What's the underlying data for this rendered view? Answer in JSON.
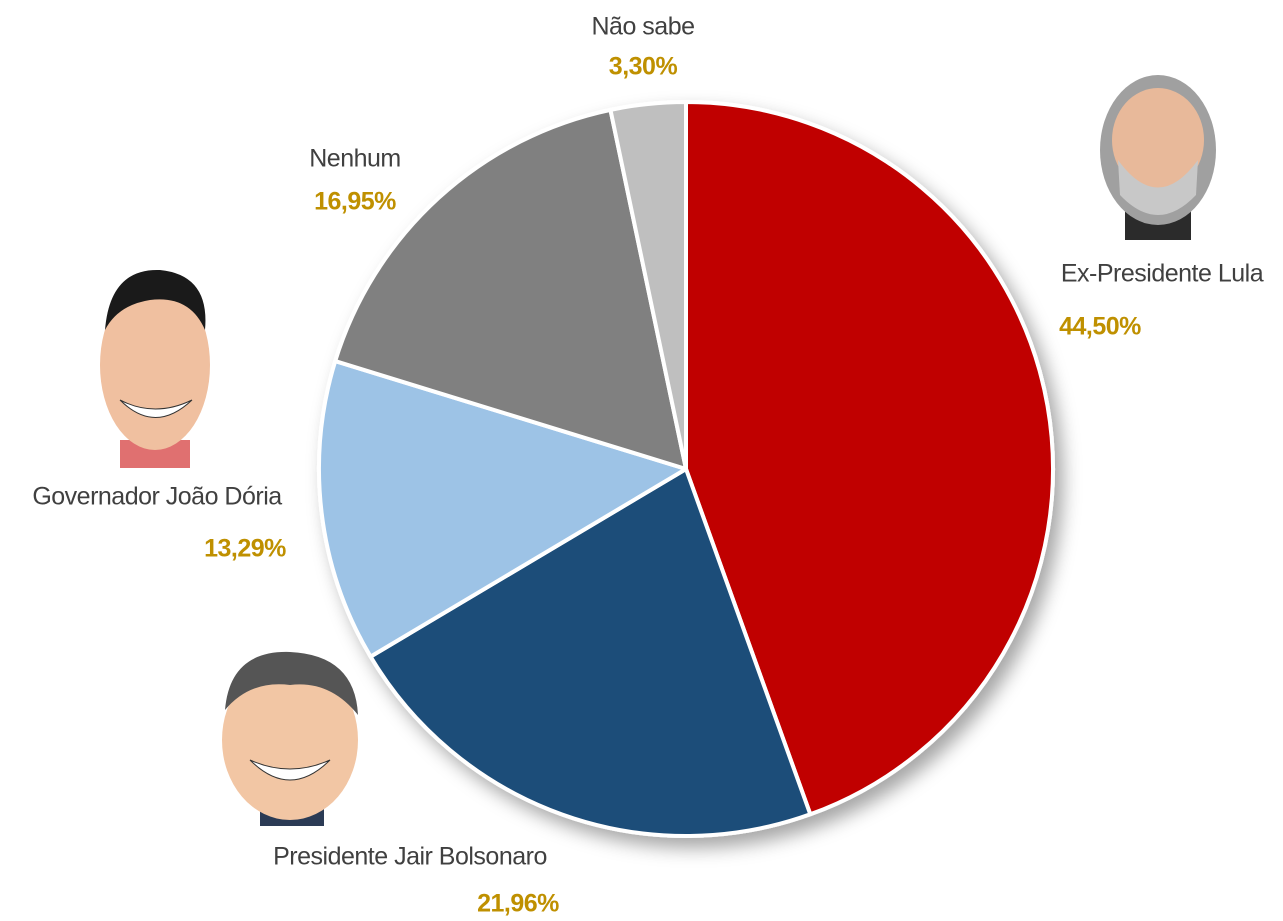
{
  "chart_data": {
    "type": "pie",
    "categories": [
      "Ex-Presidente Lula",
      "Presidente Jair Bolsonaro",
      "Governador João Dória",
      "Nenhum",
      "Não sabe"
    ],
    "values": [
      44.5,
      21.96,
      13.29,
      16.95,
      3.3
    ],
    "value_labels": [
      "44,50%",
      "21,96%",
      "13,29%",
      "16,95%",
      "3,30%"
    ],
    "colors": [
      "#c00000",
      "#1f4e79",
      "#9dc3e6",
      "#808080",
      "#bfbfbf"
    ]
  }
}
